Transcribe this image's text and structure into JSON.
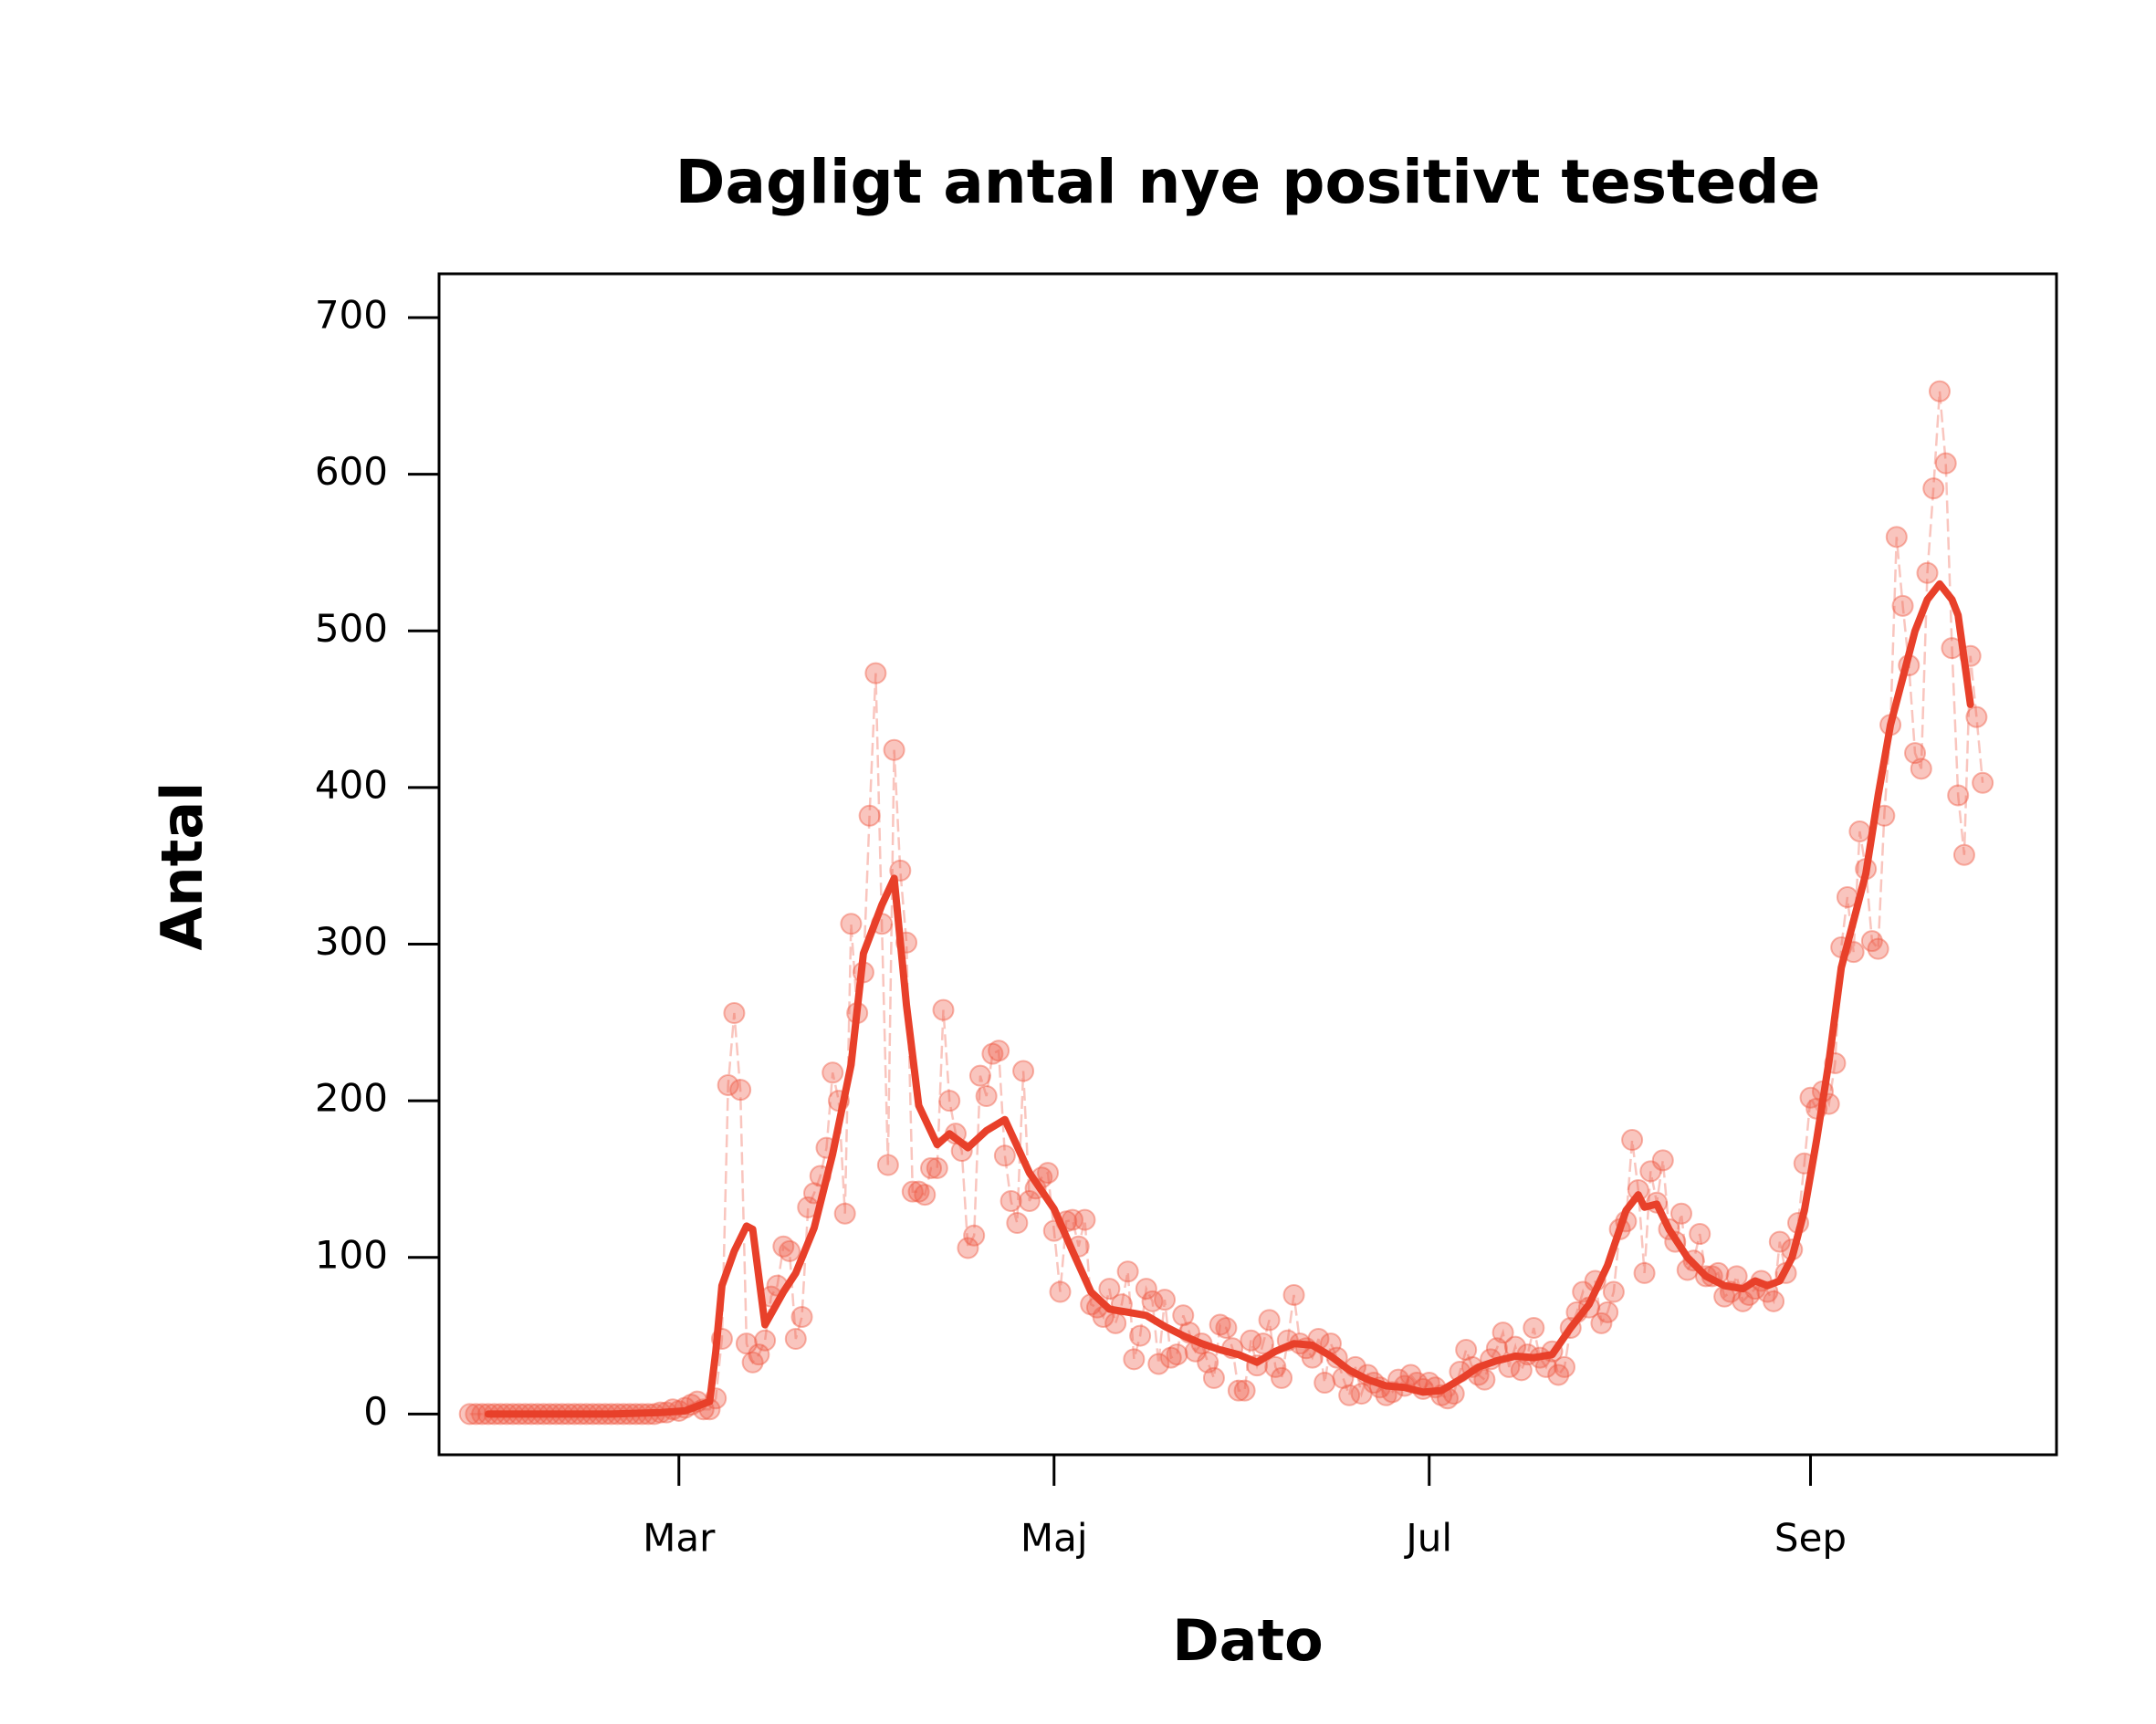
{
  "chart_data": {
    "type": "line",
    "title": "Dagligt antal nye positivt testede",
    "xlabel": "Dato",
    "ylabel": "Antal",
    "xlim": [
      22,
      285
    ],
    "ylim": [
      -26,
      728
    ],
    "xticks": [
      {
        "value": 61,
        "label": "Mar"
      },
      {
        "value": 122,
        "label": "Maj"
      },
      {
        "value": 183,
        "label": "Jul"
      },
      {
        "value": 245,
        "label": "Sep"
      }
    ],
    "yticks": [
      0,
      100,
      200,
      300,
      400,
      500,
      600,
      700
    ],
    "series": [
      {
        "style": "points",
        "color": "#ef5a45",
        "x": [
          27,
          28,
          29,
          30,
          31,
          32,
          33,
          34,
          35,
          36,
          37,
          38,
          39,
          40,
          41,
          42,
          43,
          44,
          45,
          46,
          47,
          48,
          49,
          50,
          51,
          52,
          53,
          54,
          55,
          56,
          57,
          58,
          59,
          60,
          61,
          62,
          63,
          64,
          65,
          66,
          67,
          68,
          69,
          70,
          71,
          72,
          73,
          74,
          75,
          76,
          77,
          78,
          79,
          80,
          81,
          82,
          83,
          84,
          85,
          86,
          87,
          88,
          89,
          90,
          91,
          92,
          93,
          94,
          95,
          96,
          97,
          98,
          99,
          100,
          101,
          102,
          103,
          104,
          105,
          106,
          107,
          108,
          109,
          110,
          111,
          112,
          113,
          114,
          115,
          116,
          117,
          118,
          119,
          120,
          121,
          122,
          123,
          124,
          125,
          126,
          127,
          128,
          129,
          130,
          131,
          132,
          133,
          134,
          135,
          136,
          137,
          138,
          139,
          140,
          141,
          142,
          143,
          144,
          145,
          146,
          147,
          148,
          149,
          150,
          151,
          152,
          153,
          154,
          155,
          156,
          157,
          158,
          159,
          160,
          161,
          162,
          163,
          164,
          165,
          166,
          167,
          168,
          169,
          170,
          171,
          172,
          173,
          174,
          175,
          176,
          177,
          178,
          179,
          180,
          181,
          182,
          183,
          184,
          185,
          186,
          187,
          188,
          189,
          190,
          191,
          192,
          193,
          194,
          195,
          196,
          197,
          198,
          199,
          200,
          201,
          202,
          203,
          204,
          205,
          206,
          207,
          208,
          209,
          210,
          211,
          212,
          213,
          214,
          215,
          216,
          217,
          218,
          219,
          220,
          221,
          222,
          223,
          224,
          225,
          226,
          227,
          228,
          229,
          230,
          231,
          232,
          233,
          234,
          235,
          236,
          237,
          238,
          239,
          240,
          241,
          242,
          243,
          244,
          245,
          246,
          247,
          248,
          249,
          250,
          251,
          252,
          253,
          254,
          255,
          256,
          257,
          258,
          259,
          260,
          261,
          262,
          263,
          264,
          265,
          266,
          267,
          268,
          269,
          270,
          271,
          272,
          273
        ],
        "values": [
          0,
          0,
          0,
          0,
          0,
          0,
          0,
          0,
          0,
          0,
          0,
          0,
          0,
          0,
          0,
          0,
          0,
          0,
          0,
          0,
          0,
          0,
          0,
          0,
          0,
          0,
          0,
          0,
          0,
          0,
          0,
          1,
          1,
          3,
          2,
          4,
          6,
          8,
          3,
          3,
          10,
          48,
          210,
          256,
          207,
          45,
          33,
          38,
          47,
          75,
          82,
          107,
          104,
          48,
          62,
          132,
          141,
          152,
          170,
          218,
          200,
          128,
          313,
          256,
          282,
          382,
          473,
          313,
          159,
          424,
          347,
          301,
          142,
          142,
          140,
          157,
          157,
          258,
          200,
          179,
          168,
          106,
          114,
          216,
          203,
          230,
          232,
          165,
          136,
          122,
          219,
          136,
          144,
          151,
          154,
          117,
          78,
          123,
          124,
          107,
          124,
          70,
          68,
          62,
          80,
          58,
          70,
          91,
          35,
          50,
          80,
          72,
          32,
          73,
          36,
          38,
          63,
          52,
          40,
          45,
          33,
          23,
          57,
          55,
          42,
          15,
          15,
          47,
          31,
          45,
          60,
          30,
          23,
          47,
          76,
          45,
          42,
          36,
          48,
          20,
          45,
          36,
          23,
          12,
          30,
          13,
          25,
          20,
          17,
          12,
          14,
          22,
          18,
          25,
          20,
          16,
          20,
          17,
          12,
          10,
          13,
          27,
          41,
          30,
          25,
          22,
          35,
          42,
          52,
          30,
          43,
          28,
          38,
          55,
          36,
          30,
          40,
          25,
          30,
          55,
          65,
          78,
          68,
          85,
          58,
          65,
          78,
          118,
          123,
          175,
          143,
          90,
          155,
          135,
          162,
          118,
          110,
          128,
          92,
          98,
          115,
          88,
          88,
          90,
          75,
          78,
          88,
          72,
          76,
          80,
          85,
          78,
          72,
          110,
          90,
          105,
          122,
          160,
          202,
          195,
          206,
          198,
          224,
          298,
          330,
          295,
          372,
          348,
          302,
          297,
          382,
          440,
          560,
          516,
          478,
          422,
          412,
          537,
          591,
          653,
          607,
          489,
          395,
          357,
          484,
          445,
          403
        ]
      },
      {
        "style": "line",
        "color": "#e8402a",
        "x": [
          30,
          40,
          50,
          58,
          62,
          64,
          66,
          67,
          68,
          70,
          72,
          73,
          75,
          78,
          80,
          83,
          86,
          89,
          91,
          94,
          96,
          98,
          100,
          103,
          105,
          108,
          111,
          114,
          118,
          122,
          125,
          128,
          131,
          134,
          137,
          140,
          143,
          146,
          149,
          152,
          155,
          158,
          161,
          164,
          167,
          170,
          173,
          176,
          179,
          182,
          185,
          188,
          191,
          194,
          197,
          200,
          203,
          206,
          209,
          212,
          215,
          217,
          218,
          220,
          222,
          225,
          228,
          231,
          234,
          236,
          238,
          240,
          242,
          244,
          246,
          248,
          250,
          252,
          254,
          256,
          258,
          260,
          262,
          264,
          266,
          268,
          269,
          271
        ],
        "values": [
          0,
          0,
          0,
          1,
          2,
          5,
          8,
          40,
          82,
          104,
          120,
          118,
          57,
          78,
          90,
          119,
          166,
          223,
          294,
          325,
          342,
          261,
          197,
          172,
          179,
          170,
          181,
          188,
          154,
          131,
          104,
          78,
          67,
          65,
          63,
          56,
          50,
          45,
          41,
          38,
          33,
          40,
          45,
          44,
          37,
          28,
          22,
          18,
          17,
          14,
          15,
          22,
          30,
          34,
          37,
          36,
          38,
          55,
          70,
          95,
          130,
          140,
          132,
          134,
          118,
          100,
          88,
          82,
          80,
          85,
          82,
          85,
          100,
          130,
          175,
          225,
          285,
          315,
          345,
          395,
          440,
          470,
          500,
          520,
          530,
          520,
          510,
          453
        ]
      }
    ]
  }
}
